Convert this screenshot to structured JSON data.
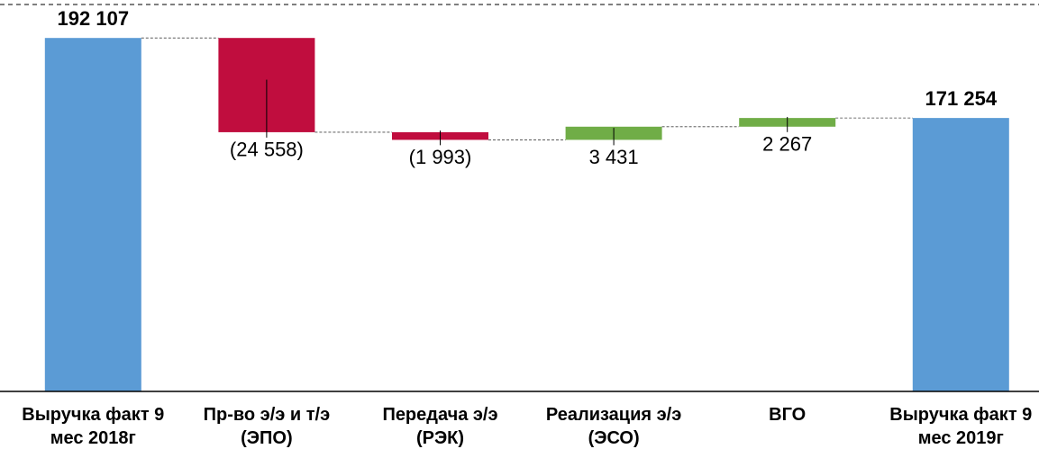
{
  "chart_data": {
    "type": "waterfall",
    "categories": [
      "Выручка факт 9 мес 2018г",
      "Пр-во э/э и т/э (ЭПО)",
      "Передача э/э (РЭК)",
      "Реализация э/э (ЭСО)",
      "ВГО",
      "Выручка факт 9 мес 2019г"
    ],
    "values": [
      192107,
      -24558,
      -1993,
      3431,
      2267,
      171254
    ],
    "value_labels": [
      "192 107",
      "(24 558)",
      "(1 993)",
      "3 431",
      "2 267",
      "171 254"
    ],
    "measure": [
      "absolute",
      "relative",
      "relative",
      "relative",
      "relative",
      "total"
    ],
    "colors": [
      "#5b9bd5",
      "#c00d3e",
      "#c00d3e",
      "#70ad47",
      "#70ad47",
      "#5b9bd5"
    ],
    "ylim": [
      100000,
      202000
    ]
  }
}
